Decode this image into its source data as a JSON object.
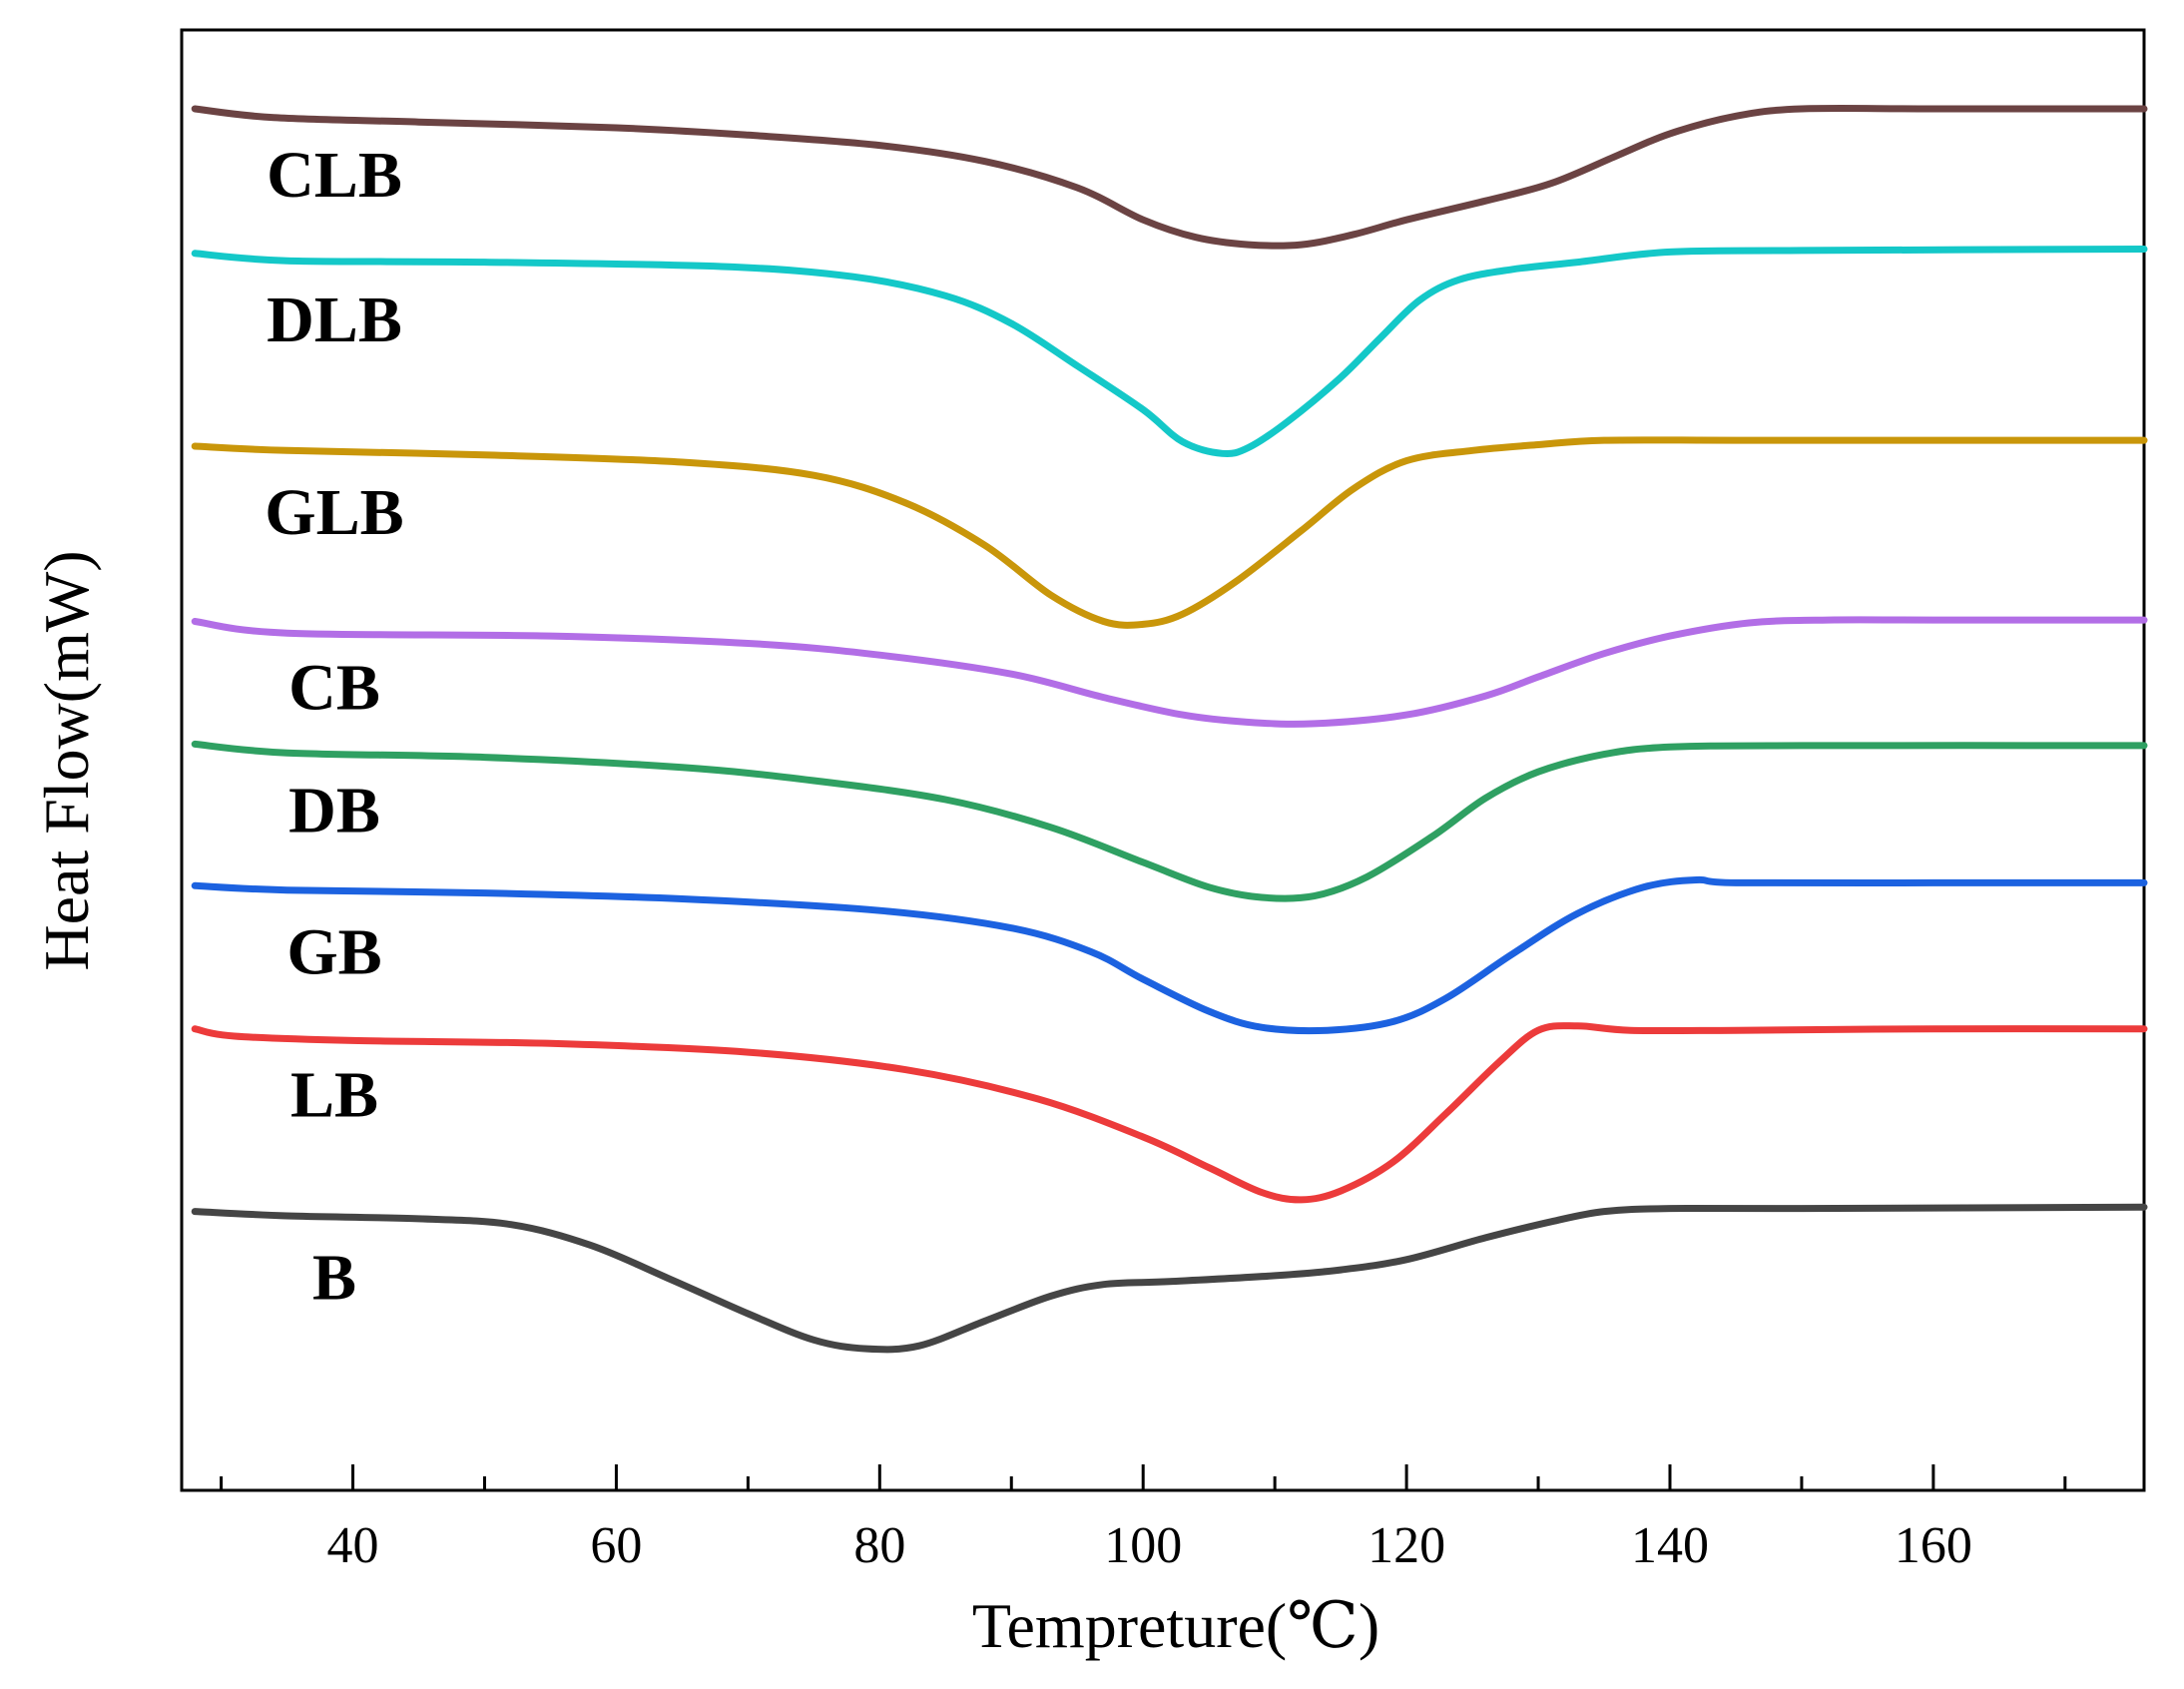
{
  "chart_data": {
    "type": "line",
    "title": "",
    "xlabel": "Tempreture(℃)",
    "ylabel": "Heat Flow(mW)",
    "xlim": [
      27,
      176
    ],
    "ylim": [
      0,
      100
    ],
    "x_ticks_major": [
      40,
      60,
      80,
      100,
      120,
      140,
      160
    ],
    "x_tick_labels": [
      "40",
      "60",
      "80",
      "100",
      "120",
      "140",
      "160"
    ],
    "x_ticks_minor": [
      30,
      50,
      70,
      90,
      110,
      130,
      150,
      170
    ],
    "y_ticks": [],
    "grid": false,
    "legend": "inline labels beside each curve",
    "series": [
      {
        "name": "CLB",
        "label": "CLB",
        "color": "#6b4343",
        "points": [
          [
            28,
            94.6
          ],
          [
            34,
            94.0
          ],
          [
            45,
            93.7
          ],
          [
            60,
            93.3
          ],
          [
            70,
            92.8
          ],
          [
            80,
            92.1
          ],
          [
            88,
            91.0
          ],
          [
            95,
            89.2
          ],
          [
            100,
            87.0
          ],
          [
            104,
            85.8
          ],
          [
            108,
            85.3
          ],
          [
            112,
            85.3
          ],
          [
            116,
            86.0
          ],
          [
            120,
            87.0
          ],
          [
            126,
            88.3
          ],
          [
            131,
            89.5
          ],
          [
            136,
            91.4
          ],
          [
            140,
            92.9
          ],
          [
            145,
            94.1
          ],
          [
            150,
            94.6
          ],
          [
            160,
            94.6
          ],
          [
            176,
            94.6
          ]
        ]
      },
      {
        "name": "DLB",
        "label": "DLB",
        "color": "#14c8c8",
        "points": [
          [
            28,
            84.7
          ],
          [
            35,
            84.2
          ],
          [
            50,
            84.1
          ],
          [
            68,
            83.8
          ],
          [
            78,
            83.1
          ],
          [
            85,
            81.8
          ],
          [
            90,
            79.9
          ],
          [
            95,
            77.0
          ],
          [
            100,
            74.0
          ],
          [
            103,
            71.8
          ],
          [
            106,
            71.0
          ],
          [
            108,
            71.4
          ],
          [
            111,
            73.2
          ],
          [
            115,
            76.2
          ],
          [
            118,
            78.9
          ],
          [
            121,
            81.5
          ],
          [
            124,
            82.9
          ],
          [
            128,
            83.6
          ],
          [
            133,
            84.1
          ],
          [
            140,
            84.8
          ],
          [
            150,
            84.9
          ],
          [
            176,
            85.0
          ]
        ]
      },
      {
        "name": "GLB",
        "label": "GLB",
        "color": "#c9960a",
        "points": [
          [
            28,
            71.5
          ],
          [
            35,
            71.2
          ],
          [
            50,
            70.9
          ],
          [
            65,
            70.4
          ],
          [
            75,
            69.5
          ],
          [
            82,
            67.6
          ],
          [
            88,
            64.7
          ],
          [
            93,
            61.3
          ],
          [
            97,
            59.5
          ],
          [
            100,
            59.3
          ],
          [
            103,
            60.0
          ],
          [
            107,
            62.2
          ],
          [
            112,
            65.7
          ],
          [
            116,
            68.6
          ],
          [
            120,
            70.5
          ],
          [
            125,
            71.2
          ],
          [
            130,
            71.6
          ],
          [
            135,
            71.9
          ],
          [
            145,
            71.9
          ],
          [
            160,
            71.9
          ],
          [
            176,
            71.9
          ]
        ]
      },
      {
        "name": "CB",
        "label": "CB",
        "color": "#b26ee6",
        "points": [
          [
            28,
            59.5
          ],
          [
            35,
            58.7
          ],
          [
            55,
            58.5
          ],
          [
            70,
            58.0
          ],
          [
            80,
            57.2
          ],
          [
            90,
            55.9
          ],
          [
            97,
            54.3
          ],
          [
            103,
            53.1
          ],
          [
            108,
            52.6
          ],
          [
            113,
            52.5
          ],
          [
            120,
            53.1
          ],
          [
            126,
            54.4
          ],
          [
            130,
            55.7
          ],
          [
            135,
            57.3
          ],
          [
            140,
            58.5
          ],
          [
            146,
            59.4
          ],
          [
            152,
            59.6
          ],
          [
            160,
            59.6
          ],
          [
            176,
            59.6
          ]
        ]
      },
      {
        "name": "DB",
        "label": "DB",
        "color": "#2fa062",
        "points": [
          [
            28,
            51.1
          ],
          [
            35,
            50.5
          ],
          [
            50,
            50.2
          ],
          [
            65,
            49.5
          ],
          [
            75,
            48.6
          ],
          [
            85,
            47.3
          ],
          [
            93,
            45.4
          ],
          [
            100,
            43.0
          ],
          [
            105,
            41.3
          ],
          [
            109,
            40.6
          ],
          [
            113,
            40.7
          ],
          [
            117,
            42.0
          ],
          [
            122,
            44.8
          ],
          [
            126,
            47.4
          ],
          [
            130,
            49.2
          ],
          [
            135,
            50.4
          ],
          [
            140,
            50.9
          ],
          [
            150,
            51.0
          ],
          [
            176,
            51.0
          ]
        ]
      },
      {
        "name": "GB",
        "label": "GB",
        "color": "#1c62e0",
        "points": [
          [
            28,
            41.4
          ],
          [
            35,
            41.1
          ],
          [
            50,
            40.9
          ],
          [
            65,
            40.5
          ],
          [
            80,
            39.7
          ],
          [
            90,
            38.5
          ],
          [
            96,
            36.9
          ],
          [
            100,
            35.0
          ],
          [
            105,
            32.8
          ],
          [
            109,
            31.7
          ],
          [
            114,
            31.5
          ],
          [
            119,
            32.1
          ],
          [
            123,
            33.7
          ],
          [
            128,
            36.7
          ],
          [
            133,
            39.5
          ],
          [
            138,
            41.3
          ],
          [
            142,
            41.8
          ],
          [
            145,
            41.6
          ],
          [
            160,
            41.6
          ],
          [
            176,
            41.6
          ]
        ]
      },
      {
        "name": "LB",
        "label": "LB",
        "color": "#ec3b3b",
        "points": [
          [
            28,
            31.6
          ],
          [
            31,
            31.1
          ],
          [
            40,
            30.8
          ],
          [
            55,
            30.6
          ],
          [
            70,
            30.0
          ],
          [
            82,
            28.8
          ],
          [
            92,
            26.8
          ],
          [
            100,
            24.2
          ],
          [
            105,
            22.1
          ],
          [
            109,
            20.4
          ],
          [
            112,
            19.9
          ],
          [
            115,
            20.5
          ],
          [
            119,
            22.5
          ],
          [
            123,
            25.8
          ],
          [
            127,
            29.3
          ],
          [
            130,
            31.5
          ],
          [
            133,
            31.8
          ],
          [
            137,
            31.5
          ],
          [
            145,
            31.5
          ],
          [
            160,
            31.6
          ],
          [
            176,
            31.6
          ]
        ]
      },
      {
        "name": "B",
        "label": "B",
        "color": "#454545",
        "points": [
          [
            28,
            19.1
          ],
          [
            35,
            18.8
          ],
          [
            45,
            18.6
          ],
          [
            52,
            18.2
          ],
          [
            58,
            16.8
          ],
          [
            64,
            14.5
          ],
          [
            70,
            12.1
          ],
          [
            75,
            10.3
          ],
          [
            79,
            9.7
          ],
          [
            83,
            9.9
          ],
          [
            88,
            11.6
          ],
          [
            93,
            13.3
          ],
          [
            97,
            14.1
          ],
          [
            102,
            14.3
          ],
          [
            110,
            14.7
          ],
          [
            115,
            15.1
          ],
          [
            120,
            15.8
          ],
          [
            126,
            17.3
          ],
          [
            131,
            18.4
          ],
          [
            135,
            19.1
          ],
          [
            140,
            19.3
          ],
          [
            150,
            19.3
          ],
          [
            176,
            19.4
          ]
        ]
      }
    ]
  }
}
